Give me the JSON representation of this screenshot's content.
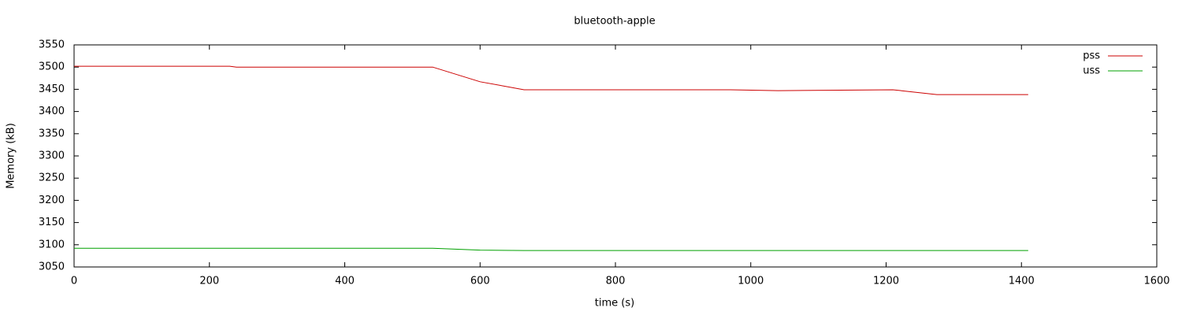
{
  "chart_data": {
    "type": "line",
    "title": "bluetooth-apple",
    "x_label": "time (s)",
    "y_label": "Memory (kB)",
    "x": [
      0,
      230,
      240,
      530,
      600,
      665,
      970,
      1040,
      1210,
      1275,
      1410
    ],
    "series": [
      {
        "name": "pss",
        "color": "#cc0000",
        "values": [
          3502,
          3502,
          3500,
          3500,
          3467,
          3449,
          3449,
          3447,
          3449,
          3438,
          3438
        ]
      },
      {
        "name": "uss",
        "color": "#00a000",
        "values": [
          3092,
          3092,
          3092,
          3092,
          3088,
          3087,
          3087,
          3087,
          3087,
          3087,
          3087
        ]
      }
    ],
    "xlim": [
      0,
      1600
    ],
    "xticks": [
      0,
      200,
      400,
      600,
      800,
      1000,
      1200,
      1400,
      1600
    ],
    "ylim": [
      3050,
      3550
    ],
    "yticks": [
      3050,
      3100,
      3150,
      3200,
      3250,
      3300,
      3350,
      3400,
      3450,
      3500,
      3550
    ],
    "grid": false,
    "legend": "top-right"
  }
}
